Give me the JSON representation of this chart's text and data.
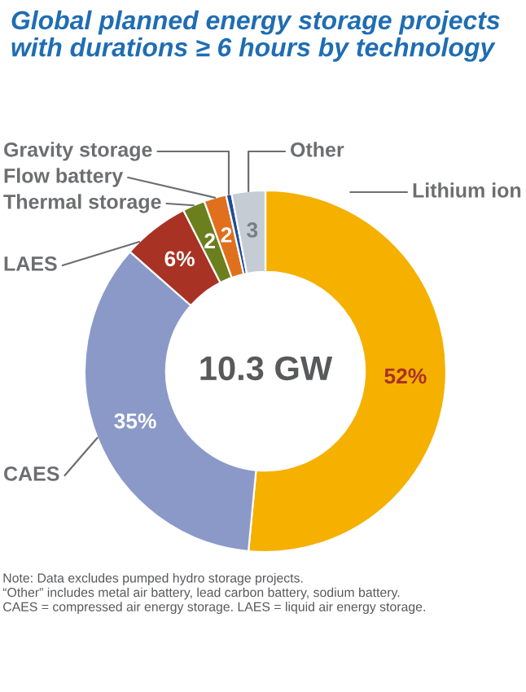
{
  "chart_data": {
    "type": "donut",
    "title": "Global planned energy storage projects\nwith durations ≥ 6 hours by technology",
    "categories": [
      "Lithium ion",
      "CAES",
      "LAES",
      "Thermal storage",
      "Flow battery",
      "Gravity storage",
      "Other"
    ],
    "values": [
      51.5,
      35,
      6,
      2,
      2,
      0.5,
      3
    ],
    "value_labels": [
      "52%",
      "35%",
      "6%",
      "2",
      "2",
      null,
      "3"
    ],
    "colors": [
      "#f5b000",
      "#8a99c8",
      "#a83224",
      "#6b7f1e",
      "#e0701e",
      "#1f4e9a",
      "#c5ccd3"
    ],
    "annotations": [
      "10.3 GW",
      "Note: Data excludes pumped hydro storage projects.\n“Other” includes metal air battery, lead carbon battery, sodium battery.\nCAES = compressed air energy storage. LAES = liquid air energy storage."
    ],
    "legend": false
  }
}
